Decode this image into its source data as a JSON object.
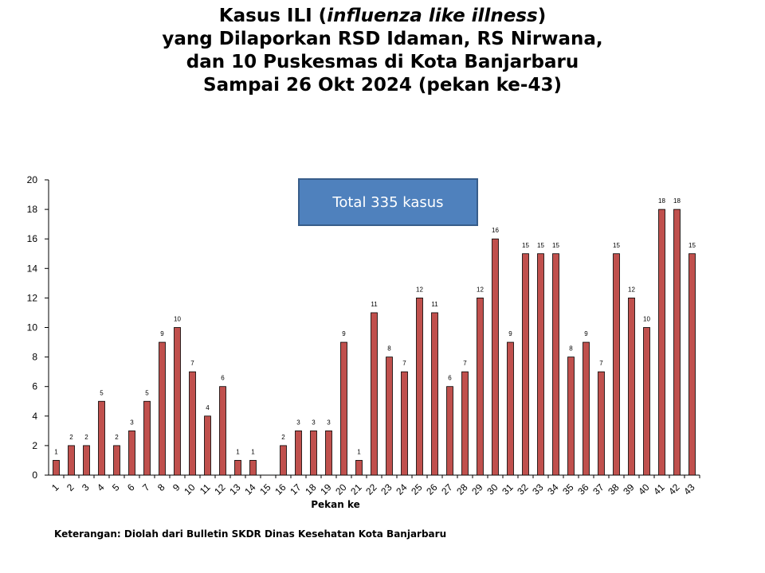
{
  "title": {
    "line1_pre": "Kasus ILI (",
    "line1_em": "influenza like illness",
    "line1_post": ")",
    "line2": "yang Dilaporkan RSD Idaman, RS Nirwana,",
    "line3": "dan 10 Puskesmas di Kota Banjarbaru",
    "line4": "Sampai 26 Okt 2024 (pekan ke-43)"
  },
  "total_label": "Total 335 kasus",
  "note": "Keterangan: Diolah dari Bulletin SKDR Dinas Kesehatan Kota Banjarbaru",
  "colors": {
    "bar_fill": "#c0504d",
    "bar_stroke": "#000000",
    "box_fill": "#4f81bd",
    "box_border": "#385d8a"
  },
  "chart_data": {
    "type": "bar",
    "title": "Kasus ILI (influenza like illness) yang Dilaporkan RSD Idaman, RS Nirwana, dan 10 Puskesmas di Kota Banjarbaru Sampai 26 Okt 2024 (pekan ke-43)",
    "xlabel": "Pekan ke",
    "ylabel": "",
    "ylim": [
      0,
      20
    ],
    "yticks": [
      0,
      2,
      4,
      6,
      8,
      10,
      12,
      14,
      16,
      18,
      20
    ],
    "grid": false,
    "categories": [
      "1",
      "2",
      "3",
      "4",
      "5",
      "6",
      "7",
      "8",
      "9",
      "10",
      "11",
      "12",
      "13",
      "14",
      "15",
      "16",
      "17",
      "18",
      "19",
      "20",
      "21",
      "22",
      "23",
      "24",
      "25",
      "26",
      "27",
      "28",
      "29",
      "30",
      "31",
      "32",
      "33",
      "34",
      "35",
      "36",
      "37",
      "38",
      "39",
      "40",
      "41",
      "42",
      "43"
    ],
    "values": [
      1,
      2,
      2,
      5,
      2,
      3,
      5,
      9,
      10,
      7,
      4,
      6,
      1,
      1,
      0,
      2,
      3,
      3,
      3,
      9,
      1,
      11,
      8,
      7,
      12,
      11,
      6,
      7,
      12,
      16,
      9,
      15,
      15,
      15,
      8,
      9,
      7,
      15,
      12,
      10,
      18,
      18,
      15
    ],
    "data_labels": [
      "1",
      "2",
      "2",
      "5",
      "2",
      "3",
      "5",
      "9",
      "10",
      "7",
      "4",
      "6",
      "1",
      "1",
      "",
      "2",
      "3",
      "3",
      "3",
      "9",
      "1",
      "11",
      "8",
      "7",
      "12",
      "11",
      "6",
      "7",
      "12",
      "16",
      "9",
      "15",
      "15",
      "15",
      "8",
      "9",
      "7",
      "15",
      "12",
      "10",
      "18",
      "18",
      "15"
    ]
  }
}
